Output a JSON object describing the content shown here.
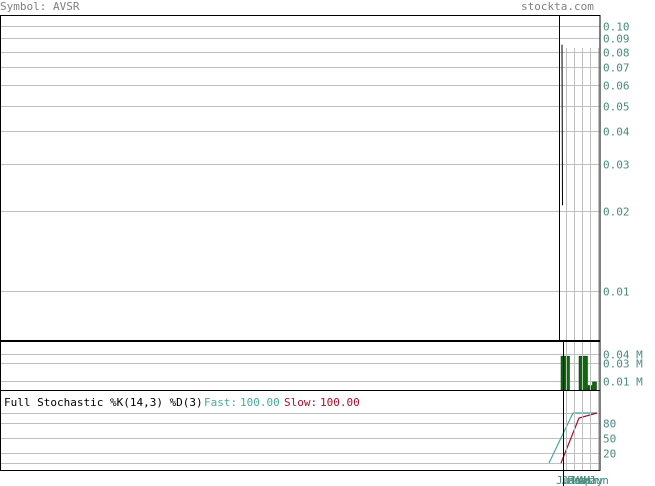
{
  "header": {
    "symbol_text": "Symbol: AVSR",
    "brand_text": "stockta.com"
  },
  "colors": {
    "grid": "#bfbfbf",
    "axis_label": "#4a8a7f",
    "volume_bar": "#0b6b0b",
    "fast_line": "#49a7a0",
    "slow_line": "#a0102b",
    "frame": "#000000",
    "header_text": "#7f7f7f"
  },
  "chart_data": [
    {
      "type": "line",
      "title": "",
      "price_scale": "log",
      "y_ticks": [
        "0.10",
        "0.09",
        "0.08",
        "0.07",
        "0.06",
        "0.05",
        "0.04",
        "0.03",
        "0.02",
        "0.01"
      ],
      "y_tick_values": [
        0.1,
        0.09,
        0.08,
        0.07,
        0.06,
        0.05,
        0.04,
        0.03,
        0.02,
        0.01
      ],
      "ylim": [
        0.0065,
        0.11
      ],
      "series": [
        {
          "x": [
            0,
            1
          ],
          "values": [
            0.085,
            0.021
          ]
        }
      ],
      "grid": true
    },
    {
      "type": "bar",
      "title": "",
      "y_ticks": [
        "0.04 M",
        "0.03 M",
        "0.01 M"
      ],
      "y_tick_values": [
        0.04,
        0.03,
        0.01
      ],
      "ylim": [
        0,
        0.055
      ],
      "values": [
        0.038,
        0.038,
        0,
        0,
        0.038,
        0.038,
        0.005,
        0.009
      ],
      "grid": true
    },
    {
      "type": "line",
      "title": "Full Stochastic %K(14,3) %D(3)",
      "legend": [
        {
          "label": "Fast:",
          "value": "100.00"
        },
        {
          "label": "Slow:",
          "value": "100.00"
        }
      ],
      "y_ticks": [
        "80",
        "50",
        "20"
      ],
      "y_tick_values": [
        80,
        50,
        20
      ],
      "ylim": [
        0,
        100
      ],
      "series": [
        {
          "x": [
            0,
            4,
            8
          ],
          "values": [
            0,
            100,
            100
          ]
        },
        {
          "x": [
            2,
            5,
            8
          ],
          "values": [
            0,
            90,
            100
          ]
        }
      ],
      "x_tick_labels": [
        "Jul",
        "Jan",
        "Feb",
        "Mar",
        "Apr",
        "May",
        "Jun"
      ],
      "grid": true
    }
  ]
}
